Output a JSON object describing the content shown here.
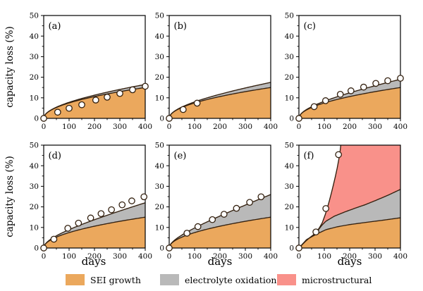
{
  "labels": {
    "ylabel": "capacity loss (%)",
    "xlabel": "days"
  },
  "colors": {
    "sei": "#eba85d",
    "oxidation": "#b9b9b9",
    "micro": "#f9918a",
    "line": "#33200f",
    "axis": "#000000",
    "point_fill": "#ffffff"
  },
  "legend": {
    "items": [
      {
        "label": "SEI growth",
        "color": "sei"
      },
      {
        "label": "electrolyte oxidation",
        "color": "oxidation"
      },
      {
        "label": "microstructural",
        "color": "micro"
      }
    ]
  },
  "chart_data": {
    "type": "area",
    "subtype": "stacked-degradation-model-with-scatter",
    "xlabel": "days",
    "ylabel": "capacity loss (%)",
    "xlim": [
      0,
      400
    ],
    "ylim": [
      0,
      50
    ],
    "xticks": [
      0,
      100,
      200,
      300,
      400
    ],
    "yticks": [
      0,
      10,
      20,
      30,
      40,
      50
    ],
    "x_minor_ticks": [
      50,
      150,
      250,
      350
    ],
    "y_minor_ticks": [
      5,
      15,
      25,
      35,
      45
    ],
    "grid": false,
    "legend_position": "bottom",
    "series_names": [
      "SEI growth",
      "electrolyte oxidation",
      "microstructural"
    ],
    "sei_model": {
      "type": "power",
      "coef": 0.75,
      "exp": 0.5
    },
    "oxid_exp": 1.15,
    "panels": [
      {
        "label": "(a)",
        "oxid_at_400": 1.5,
        "points": {
          "x": [
            0,
            55,
            100,
            150,
            205,
            250,
            300,
            350,
            400
          ],
          "y": [
            0,
            3.0,
            4.9,
            6.6,
            8.9,
            10.3,
            12.1,
            13.9,
            15.6
          ]
        }
      },
      {
        "label": "(b)",
        "oxid_at_400": 2.5,
        "points": {
          "x": [
            0,
            55,
            110
          ],
          "y": [
            0,
            4.3,
            7.4
          ]
        }
      },
      {
        "label": "(c)",
        "oxid_at_400": 4,
        "points": {
          "x": [
            0,
            60,
            105,
            163,
            205,
            255,
            303,
            350,
            400
          ],
          "y": [
            0,
            5.7,
            8.6,
            11.7,
            13.4,
            15.2,
            17.0,
            18.3,
            19.5
          ]
        }
      },
      {
        "label": "(d)",
        "oxid_at_400": 7,
        "points": {
          "x": [
            0,
            40,
            95,
            137,
            185,
            226,
            267,
            309,
            347,
            395
          ],
          "y": [
            0,
            4.3,
            9.6,
            12.1,
            14.6,
            16.7,
            18.6,
            21.0,
            22.9,
            24.9
          ]
        }
      },
      {
        "label": "(e)",
        "oxid_at_400": 11,
        "points": {
          "x": [
            0,
            70,
            113,
            170,
            216,
            265,
            317,
            362
          ],
          "y": [
            0,
            7.2,
            10.4,
            13.8,
            16.4,
            19.3,
            22.2,
            24.9
          ]
        }
      },
      {
        "label": "(f)",
        "points": {
          "x": [
            0,
            67,
            106,
            156
          ],
          "y": [
            0,
            7.8,
            19.2,
            45.4
          ]
        },
        "sei_curve": [
          [
            0,
            0
          ],
          [
            30,
            4.1
          ],
          [
            67,
            6.6
          ],
          [
            106,
            8.9
          ],
          [
            150,
            10.3
          ],
          [
            200,
            11.4
          ],
          [
            260,
            12.4
          ],
          [
            330,
            13.5
          ],
          [
            400,
            14.7
          ]
        ],
        "oxid_curve": [
          [
            0,
            0
          ],
          [
            30,
            3.8
          ],
          [
            67,
            7.3
          ],
          [
            90,
            11.0
          ],
          [
            106,
            13.0
          ],
          [
            140,
            15.5
          ],
          [
            180,
            17.5
          ],
          [
            220,
            19.3
          ],
          [
            260,
            21.0
          ],
          [
            300,
            23.0
          ],
          [
            350,
            25.6
          ],
          [
            400,
            28.5
          ]
        ],
        "total_curve": [
          [
            0,
            0
          ],
          [
            20,
            2.6
          ],
          [
            40,
            4.8
          ],
          [
            55,
            6.2
          ],
          [
            67,
            7.6
          ],
          [
            80,
            9.7
          ],
          [
            92,
            12.3
          ],
          [
            103,
            16.0
          ],
          [
            112,
            19.5
          ],
          [
            120,
            23.0
          ],
          [
            128,
            26.8
          ],
          [
            136,
            30.8
          ],
          [
            144,
            35.0
          ],
          [
            151,
            39.0
          ],
          [
            157,
            43.0
          ],
          [
            162,
            46.8
          ],
          [
            165,
            50.0
          ]
        ]
      }
    ]
  }
}
